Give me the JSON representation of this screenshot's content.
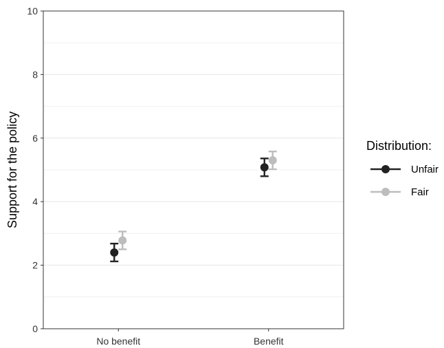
{
  "chart_data": {
    "type": "scatter",
    "subtype": "point-with-error-bars",
    "title": "",
    "xlabel": "",
    "ylabel": "Support for the policy",
    "categories": [
      "No benefit",
      "Benefit"
    ],
    "ylim": [
      0,
      10
    ],
    "yticks": [
      0,
      2,
      4,
      6,
      8,
      10
    ],
    "grid": true,
    "legend": {
      "title": "Distribution:",
      "position": "right"
    },
    "series": [
      {
        "name": "Unfair",
        "color": "#222222",
        "values": [
          2.4,
          5.08
        ],
        "lower": [
          2.12,
          4.8
        ],
        "upper": [
          2.68,
          5.36
        ]
      },
      {
        "name": "Fair",
        "color": "#bdbdbd",
        "values": [
          2.78,
          5.3
        ],
        "lower": [
          2.5,
          5.02
        ],
        "upper": [
          3.06,
          5.58
        ]
      }
    ]
  }
}
